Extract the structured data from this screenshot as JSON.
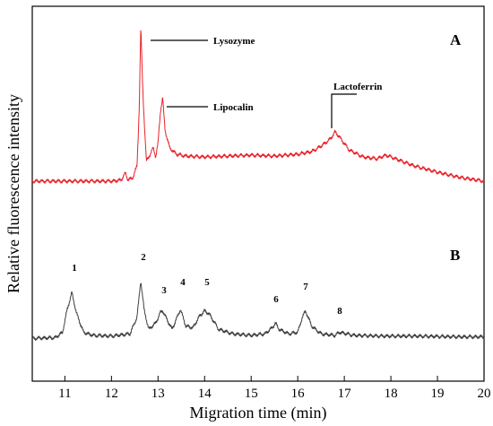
{
  "chart_data": {
    "type": "line",
    "xlabel": "Migration time (min)",
    "ylabel": "Relative fluorescence intensity",
    "xlim": [
      10.3,
      20
    ],
    "x_ticks": [
      "11",
      "12",
      "13",
      "14",
      "15",
      "16",
      "17",
      "18",
      "19",
      "20"
    ],
    "grid": false,
    "series": [
      {
        "panel": "A",
        "color": "#e8232a",
        "x": [
          10.3,
          10.6,
          11.0,
          11.5,
          12.0,
          12.2,
          12.3,
          12.35,
          12.45,
          12.55,
          12.6,
          12.63,
          12.68,
          12.75,
          12.85,
          12.9,
          12.95,
          13.0,
          13.05,
          13.1,
          13.15,
          13.25,
          13.4,
          13.6,
          14.0,
          14.5,
          15.0,
          15.5,
          16.0,
          16.3,
          16.5,
          16.7,
          16.8,
          16.9,
          17.1,
          17.4,
          17.7,
          17.9,
          18.1,
          18.5,
          19.0,
          19.5,
          20.0
        ],
        "y": [
          3,
          3,
          3,
          3,
          3,
          4,
          12,
          5,
          6,
          20,
          90,
          175,
          95,
          25,
          35,
          40,
          30,
          45,
          80,
          96,
          60,
          40,
          33,
          31,
          30,
          31,
          32,
          31,
          33,
          36,
          42,
          50,
          58,
          52,
          38,
          30,
          28,
          32,
          28,
          20,
          13,
          7,
          3
        ]
      },
      {
        "panel": "B",
        "color": "#404040",
        "x": [
          10.3,
          10.8,
          10.95,
          11.05,
          11.15,
          11.25,
          11.4,
          11.6,
          12.0,
          12.4,
          12.55,
          12.63,
          12.7,
          12.8,
          12.95,
          13.05,
          13.1,
          13.2,
          13.3,
          13.4,
          13.48,
          13.6,
          13.75,
          13.9,
          14.0,
          14.1,
          14.3,
          14.6,
          15.0,
          15.3,
          15.45,
          15.52,
          15.6,
          15.8,
          16.0,
          16.1,
          16.17,
          16.3,
          16.5,
          16.8,
          16.9,
          17.2,
          17.8,
          18.5,
          19.5,
          20.0
        ],
        "y": [
          2,
          3,
          10,
          40,
          62,
          35,
          10,
          6,
          5,
          8,
          30,
          78,
          40,
          14,
          22,
          36,
          38,
          26,
          14,
          28,
          40,
          18,
          16,
          32,
          38,
          34,
          14,
          8,
          6,
          8,
          16,
          22,
          14,
          8,
          10,
          30,
          38,
          18,
          8,
          6,
          10,
          6,
          5,
          5,
          4,
          4
        ]
      }
    ],
    "annotations": [
      "Lysozyme",
      "Lipocalin",
      "Lactoferrin"
    ],
    "panel_labels": [
      "A",
      "B"
    ],
    "peak_labels": [
      "1",
      "2",
      "3",
      "4",
      "5",
      "6",
      "7",
      "8"
    ]
  }
}
